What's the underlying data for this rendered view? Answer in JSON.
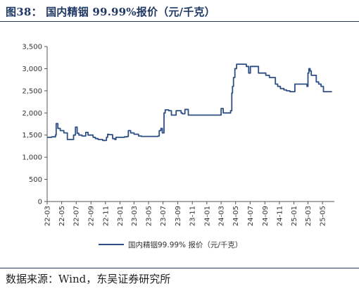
{
  "figure": {
    "title": "图38：  国内精铟 99.99%报价（元/千克）",
    "source": "数据来源：Wind，东吴证券研究所"
  },
  "colors": {
    "line": "#2e4f86",
    "axis": "#555555",
    "title": "#1f3864"
  },
  "chart_data": {
    "type": "line",
    "title": "",
    "xlabel": "",
    "ylabel": "",
    "ylim": [
      0,
      3500
    ],
    "yticks": [
      0,
      500,
      1000,
      1500,
      2000,
      2500,
      3000,
      3500
    ],
    "ytick_labels": [
      "0",
      "500",
      "1,000",
      "1,500",
      "2,000",
      "2,500",
      "3,000",
      "3,500"
    ],
    "xtick_labels": [
      "22-03",
      "22-05",
      "22-07",
      "22-09",
      "22-11",
      "23-01",
      "23-03",
      "23-05",
      "23-07",
      "23-09",
      "23-11",
      "24-01",
      "24-03",
      "24-05",
      "24-07",
      "24-09",
      "24-11",
      "25-01",
      "25-03",
      "25-05"
    ],
    "grid": false,
    "legend_position": "bottom",
    "series": [
      {
        "name": "国内精铟99.99% 报价（元/千克）",
        "x": [
          "2022-03-01",
          "2022-03-20",
          "2022-04-05",
          "2022-04-08",
          "2022-04-15",
          "2022-04-25",
          "2022-05-10",
          "2022-05-25",
          "2022-06-10",
          "2022-06-20",
          "2022-06-28",
          "2022-07-05",
          "2022-07-12",
          "2022-07-25",
          "2022-08-10",
          "2022-08-20",
          "2022-09-10",
          "2022-09-20",
          "2022-10-01",
          "2022-10-20",
          "2022-11-05",
          "2022-11-10",
          "2022-11-15",
          "2022-12-01",
          "2022-12-10",
          "2022-12-15",
          "2023-01-05",
          "2023-01-20",
          "2023-02-01",
          "2023-02-05",
          "2023-02-15",
          "2023-03-01",
          "2023-03-20",
          "2023-04-01",
          "2023-05-01",
          "2023-05-20",
          "2023-06-10",
          "2023-06-15",
          "2023-06-22",
          "2023-06-28",
          "2023-07-05",
          "2023-07-10",
          "2023-07-25",
          "2023-08-05",
          "2023-08-15",
          "2023-08-25",
          "2023-09-05",
          "2023-09-15",
          "2023-09-20",
          "2023-10-01",
          "2023-10-15",
          "2023-11-01",
          "2023-12-01",
          "2024-01-01",
          "2024-02-01",
          "2024-02-20",
          "2024-03-01",
          "2024-03-10",
          "2024-03-20",
          "2024-04-01",
          "2024-04-10",
          "2024-04-15",
          "2024-04-18",
          "2024-04-22",
          "2024-04-28",
          "2024-05-05",
          "2024-05-15",
          "2024-06-01",
          "2024-06-15",
          "2024-06-25",
          "2024-07-02",
          "2024-07-10",
          "2024-07-20",
          "2024-08-05",
          "2024-08-20",
          "2024-09-05",
          "2024-09-20",
          "2024-10-01",
          "2024-10-15",
          "2024-10-25",
          "2024-11-05",
          "2024-11-20",
          "2024-12-01",
          "2024-12-15",
          "2025-01-05",
          "2025-01-15",
          "2025-01-20",
          "2025-02-10",
          "2025-02-25",
          "2025-03-01",
          "2025-03-05",
          "2025-03-10",
          "2025-03-15",
          "2025-03-25",
          "2025-04-05",
          "2025-04-15",
          "2025-04-25",
          "2025-05-05",
          "2025-05-20",
          "2025-06-10"
        ],
        "values": [
          1450,
          1460,
          1500,
          1760,
          1650,
          1600,
          1550,
          1400,
          1400,
          1500,
          1680,
          1540,
          1500,
          1480,
          1560,
          1500,
          1450,
          1420,
          1400,
          1380,
          1450,
          1520,
          1510,
          1420,
          1400,
          1450,
          1450,
          1460,
          1470,
          1600,
          1550,
          1520,
          1480,
          1470,
          1470,
          1470,
          1480,
          1600,
          1650,
          1550,
          2000,
          2070,
          2050,
          1950,
          1950,
          2050,
          2050,
          2000,
          1980,
          2080,
          1950,
          1950,
          1950,
          1950,
          1950,
          1950,
          2100,
          2000,
          2000,
          2000,
          2050,
          2450,
          2600,
          2800,
          3000,
          3100,
          3100,
          3100,
          3050,
          2900,
          3050,
          3050,
          3050,
          2900,
          2900,
          2850,
          2800,
          2800,
          2650,
          2600,
          2550,
          2520,
          2500,
          2480,
          2650,
          2650,
          2650,
          2650,
          2600,
          2900,
          3000,
          2950,
          2850,
          2850,
          2700,
          2650,
          2600,
          2480,
          2480,
          2480
        ]
      }
    ]
  }
}
